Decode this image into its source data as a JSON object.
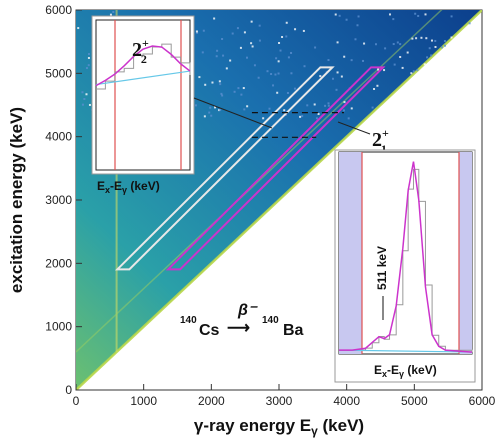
{
  "chart_data": [
    {
      "type": "heatmap",
      "xlabel": "γ-ray energy E",
      "xlabel_sub": "γ",
      "xlabel_unit": " (keV)",
      "ylabel": "excitation energy (keV)",
      "xlim": [
        0,
        6000
      ],
      "ylim": [
        0,
        6000
      ],
      "x_ticks": [
        "0",
        "1000",
        "2000",
        "3000",
        "4000",
        "5000",
        "6000"
      ],
      "y_ticks": [
        "0",
        "1000",
        "2000",
        "3000",
        "4000",
        "5000",
        "6000"
      ],
      "colors": {
        "low": "#0c3f8c",
        "mid": "#2aa0a8",
        "high": "#b9d84a",
        "white_box": "#e8e8e8",
        "magenta_box": "#cc33cc"
      },
      "regions": [
        {
          "name": "white-gate",
          "corners": [
            [
              700,
              2000
            ],
            [
              3700,
              5000
            ]
          ],
          "color": "#e8e8e8"
        },
        {
          "name": "magenta-gate",
          "corners": [
            [
              1450,
              2000
            ],
            [
              4450,
              5000
            ]
          ],
          "color": "#cc33cc"
        }
      ],
      "dashed_lines": [
        {
          "from": [
            2600,
            4380
          ],
          "to": [
            3960,
            4380
          ]
        },
        {
          "from": [
            2600,
            3990
          ],
          "to": [
            3550,
            3990
          ]
        }
      ],
      "reaction": {
        "parent_mass": "140",
        "parent": "Cs",
        "arrow_label": "β⁻",
        "daughter_mass": "140",
        "daughter": "Ba"
      }
    },
    {
      "type": "line",
      "name": "inset-2-plus-2",
      "xlabel": "E",
      "xlabel_sub1": "x",
      "xlabel_mid": "-E",
      "xlabel_sub2": "γ",
      "xlabel_unit": " (keV)",
      "state_label": "2",
      "state_sup": "+",
      "state_sub": "2",
      "fit_color": "#cc33cc",
      "background_color": "#66c8e8",
      "data_color": "#9a9a9a",
      "gate_color": "#e05050",
      "fit": [
        [
          0,
          4.05
        ],
        [
          1,
          4.3
        ],
        [
          2,
          4.6
        ],
        [
          3,
          5.0
        ],
        [
          4,
          5.45
        ],
        [
          5,
          5.8
        ],
        [
          6,
          5.95
        ],
        [
          7,
          5.9
        ],
        [
          8,
          5.55
        ],
        [
          9,
          5.1
        ],
        [
          10,
          4.75
        ]
      ],
      "background": [
        [
          0,
          4.1
        ],
        [
          10,
          4.75
        ]
      ]
    },
    {
      "type": "line",
      "name": "inset-2-plus-1",
      "xlabel": "E",
      "xlabel_sub1": "x",
      "xlabel_mid": "-E",
      "xlabel_sub2": "γ",
      "xlabel_unit": " (keV)",
      "state_label": "2",
      "state_sup": "+",
      "state_sub": "1",
      "peak_label": "511 keV",
      "fit_color": "#cc33cc",
      "background_color": "#66c8e8",
      "data_color": "#9a9a9a",
      "gate_color": "#e05050",
      "shade_color": "#c8c8f0",
      "fit": [
        [
          0,
          0.02
        ],
        [
          1,
          0.02
        ],
        [
          2,
          0.03
        ],
        [
          2.5,
          0.06
        ],
        [
          3,
          0.09
        ],
        [
          3.4,
          0.08
        ],
        [
          3.8,
          0.1
        ],
        [
          4.3,
          0.25
        ],
        [
          4.8,
          0.55
        ],
        [
          5.2,
          0.85
        ],
        [
          5.6,
          1.0
        ],
        [
          6.0,
          0.8
        ],
        [
          6.5,
          0.35
        ],
        [
          7.0,
          0.1
        ],
        [
          7.5,
          0.04
        ],
        [
          8,
          0.02
        ],
        [
          10,
          0.01
        ]
      ],
      "background": [
        [
          0,
          0.02
        ],
        [
          10,
          0.01
        ]
      ]
    }
  ]
}
